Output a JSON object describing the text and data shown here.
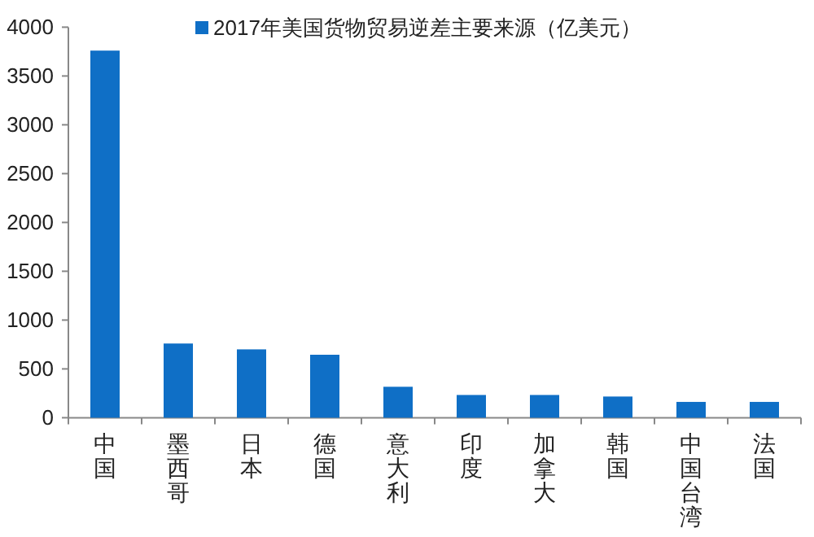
{
  "chart_data": {
    "type": "bar",
    "categories": [
      "中国",
      "墨西哥",
      "日本",
      "德国",
      "意大利",
      "印度",
      "加拿大",
      "韩国",
      "中国台湾",
      "法国"
    ],
    "series": [
      {
        "name": "2017年美国货物贸易逆差主要来源（亿美元）",
        "color": "#0f6fc6",
        "values": [
          3760,
          760,
          700,
          645,
          317,
          233,
          233,
          217,
          162,
          162
        ]
      }
    ],
    "ylim": [
      0,
      4000
    ],
    "yticks": [
      0,
      500,
      1000,
      1500,
      2000,
      2500,
      3000,
      3500,
      4000
    ],
    "legend": "top",
    "grid": false
  }
}
